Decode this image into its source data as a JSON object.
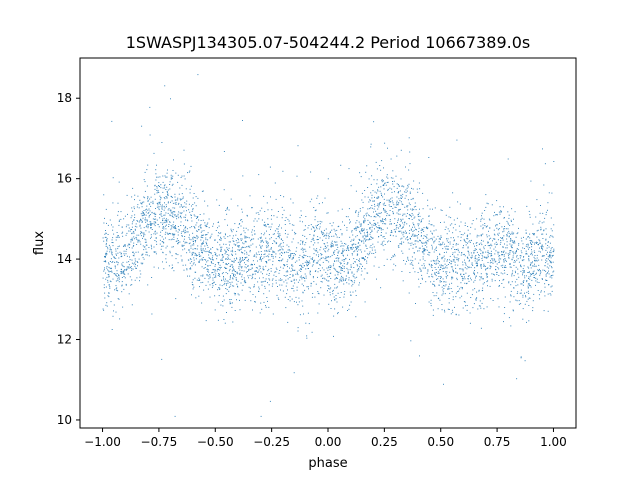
{
  "chart_data": {
    "type": "scatter",
    "title": "1SWASPJ134305.07-504244.2 Period 10667389.0s",
    "xlabel": "phase",
    "ylabel": "flux",
    "xlim": [
      -1.1,
      1.1
    ],
    "ylim": [
      9.8,
      19.0
    ],
    "x_ticks": [
      -1.0,
      -0.75,
      -0.5,
      -0.25,
      0.0,
      0.25,
      0.5,
      0.75,
      1.0
    ],
    "x_tick_labels": [
      "−1.00",
      "−0.75",
      "−0.50",
      "−0.25",
      "0.00",
      "0.25",
      "0.50",
      "0.75",
      "1.00"
    ],
    "y_ticks": [
      10,
      12,
      14,
      16,
      18
    ],
    "y_tick_labels": [
      "10",
      "12",
      "14",
      "16",
      "18"
    ],
    "grid": false,
    "legend": "none",
    "marker_color": "#1f77b4",
    "series": [
      {
        "x_range": [
          -1.0,
          1.0
        ],
        "period_in_phase": 1.0,
        "mean_flux_profile": {
          "phase": [
            0.0,
            0.05,
            0.1,
            0.15,
            0.2,
            0.25,
            0.3,
            0.35,
            0.4,
            0.45,
            0.5,
            0.55,
            0.6,
            0.65,
            0.7,
            0.75,
            0.8,
            0.85,
            0.9,
            0.95,
            1.0
          ],
          "flux": [
            14.0,
            13.9,
            14.1,
            14.6,
            15.0,
            15.2,
            15.1,
            14.9,
            14.5,
            14.2,
            13.9,
            13.8,
            14.0,
            14.1,
            14.0,
            14.3,
            14.1,
            13.8,
            13.9,
            14.3,
            14.0
          ]
        },
        "typical_scatter": 0.6,
        "flux_min": 10.1,
        "flux_max": 18.6
      }
    ]
  }
}
